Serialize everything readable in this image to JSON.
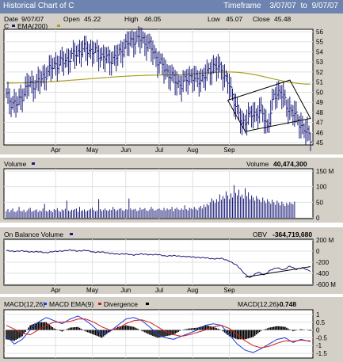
{
  "header": {
    "title": "Historical Chart of C",
    "timeframe_label": "Timeframe",
    "timeframe_from": "3/07/07",
    "timeframe_sep": "to",
    "timeframe_to": "9/07/07"
  },
  "price_panel": {
    "date_label": "Date",
    "date_value": "9/07/07",
    "open_label": "Open",
    "open_value": "45.22",
    "high_label": "High",
    "high_value": "46.05",
    "low_label": "Low",
    "low_value": "45.07",
    "close_label": "Close",
    "close_value": "45.48",
    "legend_symbol": "C",
    "legend_ema": "EMA(200)"
  },
  "volume_panel": {
    "legend": "Volume",
    "readout_label": "Volume",
    "readout_value": "40,474,300"
  },
  "obv_panel": {
    "legend": "On Balance Volume",
    "readout_label": "OBV",
    "readout_value": "-364,719,680"
  },
  "macd_panel": {
    "legend_macd": "MACD(12,26)",
    "legend_ema": "MACD EMA(9)",
    "legend_div": "Divergence",
    "readout_label": "MACD(12,26)",
    "readout_value": "-0.748"
  },
  "colors": {
    "panel_bg": "#d4d0c8",
    "plot_bg": "#ffffff",
    "price_bars": "#1c1c7a",
    "ema_line": "#a8a020",
    "volume_bars": "#1c1c7a",
    "obv_line": "#1c1c7a",
    "macd_line": "#1a3bd6",
    "macd_signal": "#d41a1a",
    "divergence": "#000000"
  },
  "chart_data": [
    {
      "type": "ohlc",
      "name": "price",
      "x_ticks": [
        "Apr",
        "May",
        "Jun",
        "Jul",
        "Aug",
        "Sep"
      ],
      "y_ticks": [
        "45",
        "46",
        "47",
        "48",
        "49",
        "50",
        "51",
        "52",
        "53",
        "54",
        "55",
        "56"
      ],
      "ylim": [
        45,
        56
      ],
      "close_points": [
        [
          0,
          49.7
        ],
        [
          3,
          49.0
        ],
        [
          7,
          48.8
        ],
        [
          10,
          49.7
        ],
        [
          14,
          50.8
        ],
        [
          18,
          50.7
        ],
        [
          22,
          51.3
        ],
        [
          26,
          52.0
        ],
        [
          30,
          52.7
        ],
        [
          35,
          53.0
        ],
        [
          40,
          53.4
        ],
        [
          45,
          54.0
        ],
        [
          50,
          54.3
        ],
        [
          55,
          54.0
        ],
        [
          60,
          53.6
        ],
        [
          65,
          53.2
        ],
        [
          70,
          53.6
        ],
        [
          75,
          54.7
        ],
        [
          80,
          55.2
        ],
        [
          85,
          55.3
        ],
        [
          90,
          54.6
        ],
        [
          95,
          53.2
        ],
        [
          100,
          52.2
        ],
        [
          105,
          51.3
        ],
        [
          110,
          50.7
        ],
        [
          115,
          51.6
        ],
        [
          120,
          51.2
        ],
        [
          125,
          51.6
        ],
        [
          130,
          52.6
        ],
        [
          135,
          52.3
        ],
        [
          140,
          50.6
        ],
        [
          144,
          48.8
        ],
        [
          148,
          46.8
        ],
        [
          152,
          47.6
        ],
        [
          156,
          47.8
        ],
        [
          160,
          48.2
        ],
        [
          164,
          46.6
        ],
        [
          168,
          49.5
        ],
        [
          172,
          50.2
        ],
        [
          176,
          48.6
        ],
        [
          180,
          48.0
        ],
        [
          184,
          47.0
        ],
        [
          188,
          46.1
        ],
        [
          191,
          45.5
        ]
      ],
      "ema": [
        [
          0,
          50.9
        ],
        [
          100,
          51.7
        ],
        [
          140,
          52.0
        ],
        [
          191,
          50.8
        ]
      ],
      "channel_lines": [
        [
          [
            139,
            49.2
          ],
          [
            178,
            51.2
          ],
          [
            191,
            47.4
          ],
          [
            150,
            46.1
          ],
          [
            139,
            49.2
          ]
        ]
      ]
    },
    {
      "type": "bar",
      "name": "volume",
      "y_ticks": [
        "0",
        "50",
        "100",
        "150 M"
      ],
      "ylim": [
        0,
        150
      ],
      "values_m": [
        22,
        28,
        18,
        25,
        30,
        20,
        19,
        24,
        35,
        22,
        21,
        26,
        18,
        23,
        29,
        32,
        20,
        22,
        25,
        27,
        19,
        24,
        21,
        30,
        45,
        22,
        20,
        26,
        23,
        18,
        28,
        25,
        31,
        22,
        19,
        27,
        24,
        29,
        55,
        23,
        21,
        26,
        25,
        28,
        30,
        20,
        35,
        22,
        24,
        27,
        21,
        23,
        26,
        29,
        33,
        25,
        21,
        24,
        60,
        28,
        22,
        26,
        30,
        24,
        23,
        27,
        25,
        35,
        28,
        22,
        26,
        29,
        31,
        24,
        23,
        28,
        26,
        62,
        30,
        25,
        27,
        29,
        22,
        24,
        33,
        26,
        28,
        31,
        24,
        22,
        27,
        35,
        29,
        23,
        25,
        28,
        30,
        26,
        24,
        32,
        24,
        30,
        26,
        28,
        35,
        22,
        29,
        33,
        27,
        25,
        30,
        26,
        40,
        28,
        24,
        32,
        30,
        27,
        35,
        29,
        25,
        33,
        38,
        30,
        42,
        35,
        45,
        40,
        50,
        62,
        55,
        48,
        60,
        52,
        75,
        58,
        70,
        62,
        85,
        72,
        60,
        78,
        65,
        105,
        80,
        72,
        90,
        68,
        75,
        62,
        95,
        70,
        82,
        60,
        72,
        65,
        55,
        70,
        62,
        58,
        50,
        65,
        55,
        48,
        60,
        52,
        45,
        58,
        50,
        42,
        55,
        48,
        40,
        52,
        45,
        38,
        48,
        42,
        50,
        46,
        44,
        52
      ]
    },
    {
      "type": "line",
      "name": "on_balance_volume",
      "y_ticks": [
        "200 M",
        "0",
        "-200",
        "-400",
        "-600 M"
      ],
      "ylim": [
        -600,
        200
      ],
      "points": [
        [
          0,
          10
        ],
        [
          5,
          -5
        ],
        [
          10,
          5
        ],
        [
          15,
          -15
        ],
        [
          20,
          -10
        ],
        [
          25,
          -30
        ],
        [
          30,
          -5
        ],
        [
          35,
          0
        ],
        [
          40,
          20
        ],
        [
          45,
          0
        ],
        [
          50,
          15
        ],
        [
          55,
          -20
        ],
        [
          60,
          -15
        ],
        [
          65,
          -40
        ],
        [
          70,
          -55
        ],
        [
          75,
          -50
        ],
        [
          80,
          -70
        ],
        [
          85,
          -50
        ],
        [
          90,
          -65
        ],
        [
          95,
          -60
        ],
        [
          100,
          -90
        ],
        [
          105,
          -80
        ],
        [
          110,
          -95
        ],
        [
          115,
          -100
        ],
        [
          120,
          -115
        ],
        [
          125,
          -120
        ],
        [
          130,
          -140
        ],
        [
          135,
          -130
        ],
        [
          140,
          -180
        ],
        [
          145,
          -260
        ],
        [
          150,
          -420
        ],
        [
          153,
          -480
        ],
        [
          158,
          -380
        ],
        [
          162,
          -430
        ],
        [
          166,
          -340
        ],
        [
          170,
          -300
        ],
        [
          174,
          -340
        ],
        [
          178,
          -270
        ],
        [
          182,
          -330
        ],
        [
          186,
          -300
        ],
        [
          191,
          -365
        ]
      ],
      "trend_line": [
        [
          150,
          -470
        ],
        [
          191,
          -280
        ]
      ]
    },
    {
      "type": "line",
      "name": "macd",
      "y_ticks": [
        "1",
        "0.5",
        "0",
        "-0.5",
        "-1",
        "-1.5"
      ],
      "ylim": [
        -1.7,
        1.2
      ],
      "series": [
        {
          "name": "MACD(12,26)",
          "points": [
            [
              0,
              -0.35
            ],
            [
              5,
              -0.9
            ],
            [
              10,
              -0.6
            ],
            [
              15,
              0.0
            ],
            [
              20,
              0.5
            ],
            [
              25,
              0.8
            ],
            [
              30,
              0.6
            ],
            [
              35,
              0.4
            ],
            [
              40,
              0.7
            ],
            [
              45,
              0.9
            ],
            [
              50,
              0.6
            ],
            [
              55,
              0.2
            ],
            [
              60,
              -0.3
            ],
            [
              65,
              -0.1
            ],
            [
              70,
              0.3
            ],
            [
              75,
              0.7
            ],
            [
              80,
              0.8
            ],
            [
              85,
              0.6
            ],
            [
              90,
              0.2
            ],
            [
              95,
              -0.3
            ],
            [
              100,
              -0.5
            ],
            [
              105,
              -0.6
            ],
            [
              110,
              -0.4
            ],
            [
              115,
              -0.2
            ],
            [
              120,
              0.0
            ],
            [
              125,
              0.3
            ],
            [
              130,
              0.4
            ],
            [
              135,
              0.3
            ],
            [
              140,
              -0.3
            ],
            [
              145,
              -0.9
            ],
            [
              150,
              -1.3
            ],
            [
              155,
              -1.45
            ],
            [
              160,
              -1.2
            ],
            [
              165,
              -0.9
            ],
            [
              170,
              -0.6
            ],
            [
              175,
              -0.5
            ],
            [
              180,
              -0.8
            ],
            [
              185,
              -0.6
            ],
            [
              191,
              -0.75
            ]
          ]
        },
        {
          "name": "MACD EMA(9)",
          "points": [
            [
              0,
              0.3
            ],
            [
              10,
              -0.2
            ],
            [
              15,
              -0.3
            ],
            [
              20,
              0.0
            ],
            [
              25,
              0.3
            ],
            [
              30,
              0.5
            ],
            [
              35,
              0.5
            ],
            [
              40,
              0.55
            ],
            [
              45,
              0.7
            ],
            [
              50,
              0.7
            ],
            [
              55,
              0.5
            ],
            [
              60,
              0.2
            ],
            [
              65,
              0.0
            ],
            [
              70,
              0.1
            ],
            [
              75,
              0.4
            ],
            [
              80,
              0.6
            ],
            [
              85,
              0.65
            ],
            [
              90,
              0.5
            ],
            [
              95,
              0.2
            ],
            [
              100,
              -0.1
            ],
            [
              105,
              -0.3
            ],
            [
              110,
              -0.4
            ],
            [
              115,
              -0.3
            ],
            [
              120,
              -0.15
            ],
            [
              125,
              0.0
            ],
            [
              130,
              0.2
            ],
            [
              135,
              0.3
            ],
            [
              140,
              0.1
            ],
            [
              145,
              -0.3
            ],
            [
              150,
              -0.7
            ],
            [
              155,
              -1.0
            ],
            [
              160,
              -1.15
            ],
            [
              165,
              -1.05
            ],
            [
              170,
              -0.85
            ],
            [
              175,
              -0.7
            ],
            [
              180,
              -0.72
            ],
            [
              185,
              -0.65
            ],
            [
              191,
              -0.7
            ]
          ]
        }
      ],
      "divergence": [
        [
          0,
          -0.6
        ],
        [
          5,
          -0.7
        ],
        [
          10,
          -0.4
        ],
        [
          15,
          0.3
        ],
        [
          20,
          0.5
        ],
        [
          25,
          0.5
        ],
        [
          30,
          0.1
        ],
        [
          35,
          -0.1
        ],
        [
          40,
          0.15
        ],
        [
          45,
          0.2
        ],
        [
          50,
          -0.1
        ],
        [
          55,
          -0.3
        ],
        [
          60,
          -0.5
        ],
        [
          65,
          -0.1
        ],
        [
          70,
          0.2
        ],
        [
          75,
          0.3
        ],
        [
          80,
          0.2
        ],
        [
          85,
          -0.05
        ],
        [
          90,
          -0.3
        ],
        [
          95,
          -0.5
        ],
        [
          100,
          -0.4
        ],
        [
          105,
          -0.3
        ],
        [
          110,
          0.0
        ],
        [
          115,
          0.1
        ],
        [
          120,
          0.15
        ],
        [
          125,
          0.3
        ],
        [
          130,
          0.2
        ],
        [
          135,
          0.0
        ],
        [
          140,
          -0.4
        ],
        [
          145,
          -0.6
        ],
        [
          150,
          -0.6
        ],
        [
          155,
          -0.45
        ],
        [
          160,
          -0.05
        ],
        [
          165,
          0.15
        ],
        [
          170,
          0.25
        ],
        [
          175,
          0.2
        ],
        [
          180,
          -0.08
        ],
        [
          185,
          0.05
        ],
        [
          191,
          -0.05
        ]
      ]
    }
  ]
}
